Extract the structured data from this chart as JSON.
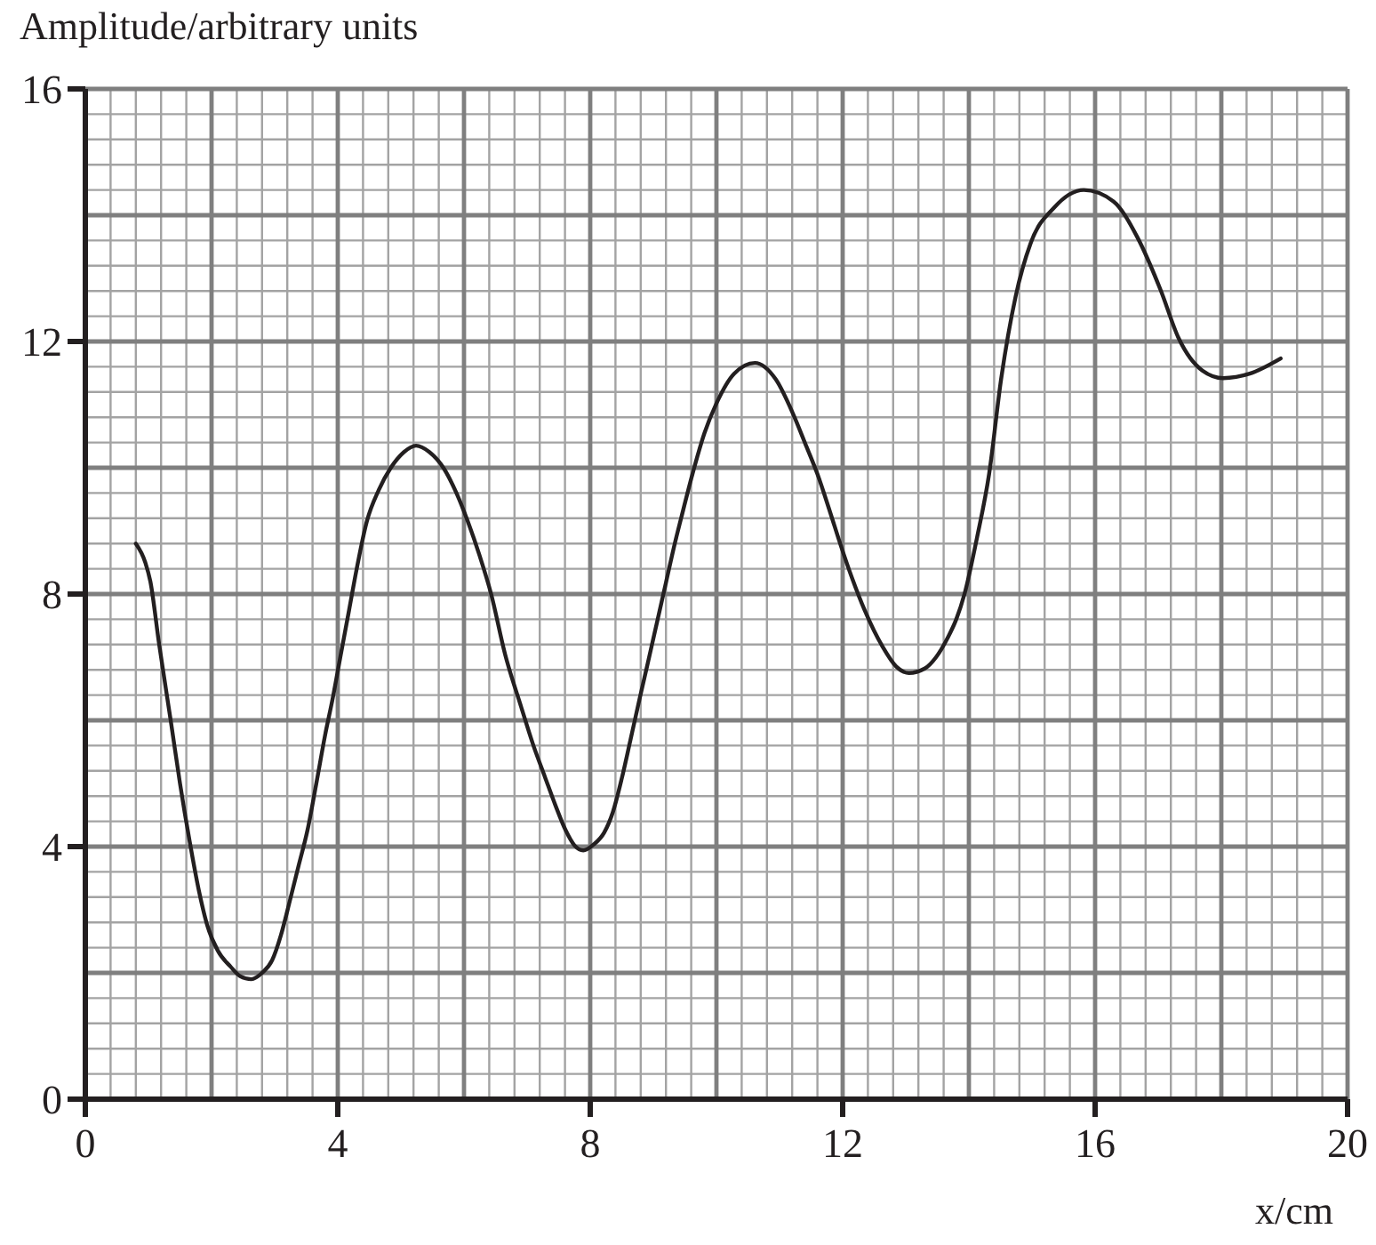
{
  "chart_data": {
    "type": "line",
    "ylabel": "Amplitude/arbitrary units",
    "xlabel": "x/cm",
    "x": [
      0.8,
      0.95,
      1.03,
      1.17,
      1.36,
      1.5,
      1.65,
      1.8,
      1.93,
      2.1,
      2.3,
      2.45,
      2.63,
      2.8,
      2.96,
      3.1,
      3.24,
      3.38,
      3.52,
      3.66,
      3.8,
      3.92,
      4.04,
      4.18,
      4.3,
      4.46,
      4.65,
      4.84,
      5.05,
      5.24,
      5.45,
      5.68,
      5.88,
      6.06,
      6.25,
      6.43,
      6.65,
      6.9,
      7.1,
      7.28,
      7.45,
      7.61,
      7.75,
      7.89,
      8.05,
      8.22,
      8.36,
      8.5,
      8.64,
      8.78,
      8.92,
      9.06,
      9.2,
      9.34,
      9.44,
      9.62,
      9.81,
      10.0,
      10.28,
      10.61,
      10.94,
      11.22,
      11.4,
      11.6,
      11.8,
      11.97,
      12.15,
      12.35,
      12.63,
      12.85,
      13.05,
      13.3,
      13.48,
      13.66,
      13.8,
      13.93,
      14.13,
      14.32,
      14.51,
      14.74,
      14.98,
      15.35,
      15.82,
      16.29,
      16.67,
      17.04,
      17.32,
      17.7,
      18.03,
      18.45,
      18.94
    ],
    "series": [
      {
        "color": "#231f20",
        "values": [
          8.8,
          8.5,
          8.2,
          7.2,
          5.95,
          5.0,
          4.1,
          3.3,
          2.76,
          2.35,
          2.1,
          1.95,
          1.9,
          2.0,
          2.2,
          2.6,
          3.14,
          3.7,
          4.26,
          5.0,
          5.77,
          6.35,
          7.0,
          7.75,
          8.4,
          9.15,
          9.65,
          10.0,
          10.25,
          10.35,
          10.25,
          9.99,
          9.6,
          9.15,
          8.6,
          8.0,
          7.05,
          6.23,
          5.6,
          5.11,
          4.65,
          4.26,
          4.02,
          3.94,
          4.03,
          4.22,
          4.55,
          5.08,
          5.7,
          6.33,
          6.94,
          7.56,
          8.18,
          8.8,
          9.2,
          9.9,
          10.55,
          11.02,
          11.49,
          11.66,
          11.4,
          10.84,
          10.4,
          9.9,
          9.3,
          8.77,
          8.25,
          7.74,
          7.17,
          6.85,
          6.75,
          6.82,
          7.0,
          7.3,
          7.6,
          8.0,
          8.9,
          9.9,
          11.4,
          12.71,
          13.56,
          14.12,
          14.4,
          14.22,
          13.65,
          12.81,
          12.06,
          11.54,
          11.42,
          11.49,
          11.73
        ]
      }
    ],
    "xlim": [
      0,
      20
    ],
    "xticks": [
      0,
      4,
      8,
      12,
      16,
      20
    ],
    "ylim": [
      0,
      16
    ],
    "yticks": [
      0,
      4,
      8,
      12,
      16
    ],
    "grid": true,
    "marker": "none",
    "line_style": "solid"
  }
}
